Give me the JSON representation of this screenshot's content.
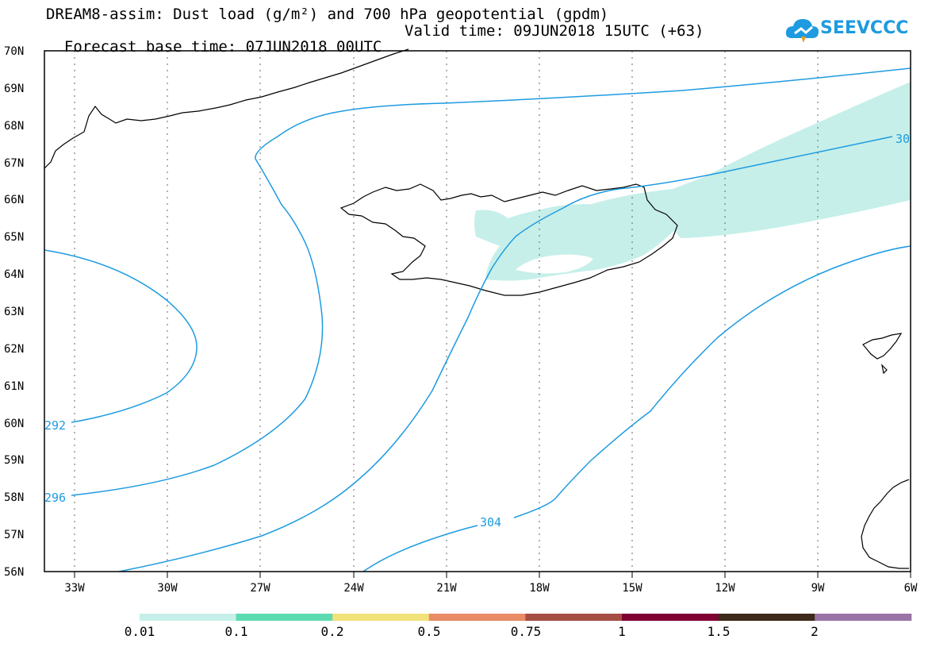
{
  "header": {
    "title": "DREAM8-assim: Dust load (g/m²) and 700 hPa geopotential (gpdm)",
    "base_time": "Forecast base time: 07JUN2018 00UTC",
    "valid_time": "Valid time: 09JUN2018 15UTC (+63)"
  },
  "logo": {
    "text": "SEEVCCC",
    "accent": "#1e9be0"
  },
  "map": {
    "lat_labels": [
      "70N",
      "69N",
      "68N",
      "67N",
      "66N",
      "65N",
      "64N",
      "63N",
      "62N",
      "61N",
      "60N",
      "59N",
      "58N",
      "57N",
      "56N"
    ],
    "lon_labels": [
      "33W",
      "30W",
      "27W",
      "24W",
      "21W",
      "18W",
      "15W",
      "12W",
      "9W",
      "6W"
    ],
    "contour_labels": [
      "292",
      "296",
      "304",
      "30"
    ],
    "contour_color": "#1e9be0",
    "dust_color": "#c6efe9"
  },
  "colorbar": {
    "labels": [
      "0.01",
      "0.1",
      "0.2",
      "0.5",
      "0.75",
      "1",
      "1.5",
      "2"
    ],
    "colors": [
      "#c6efe9",
      "#5ddbb0",
      "#f2e27a",
      "#e88b66",
      "#a64d43",
      "#800033",
      "#3d2a1a",
      "#9a74a6"
    ]
  }
}
